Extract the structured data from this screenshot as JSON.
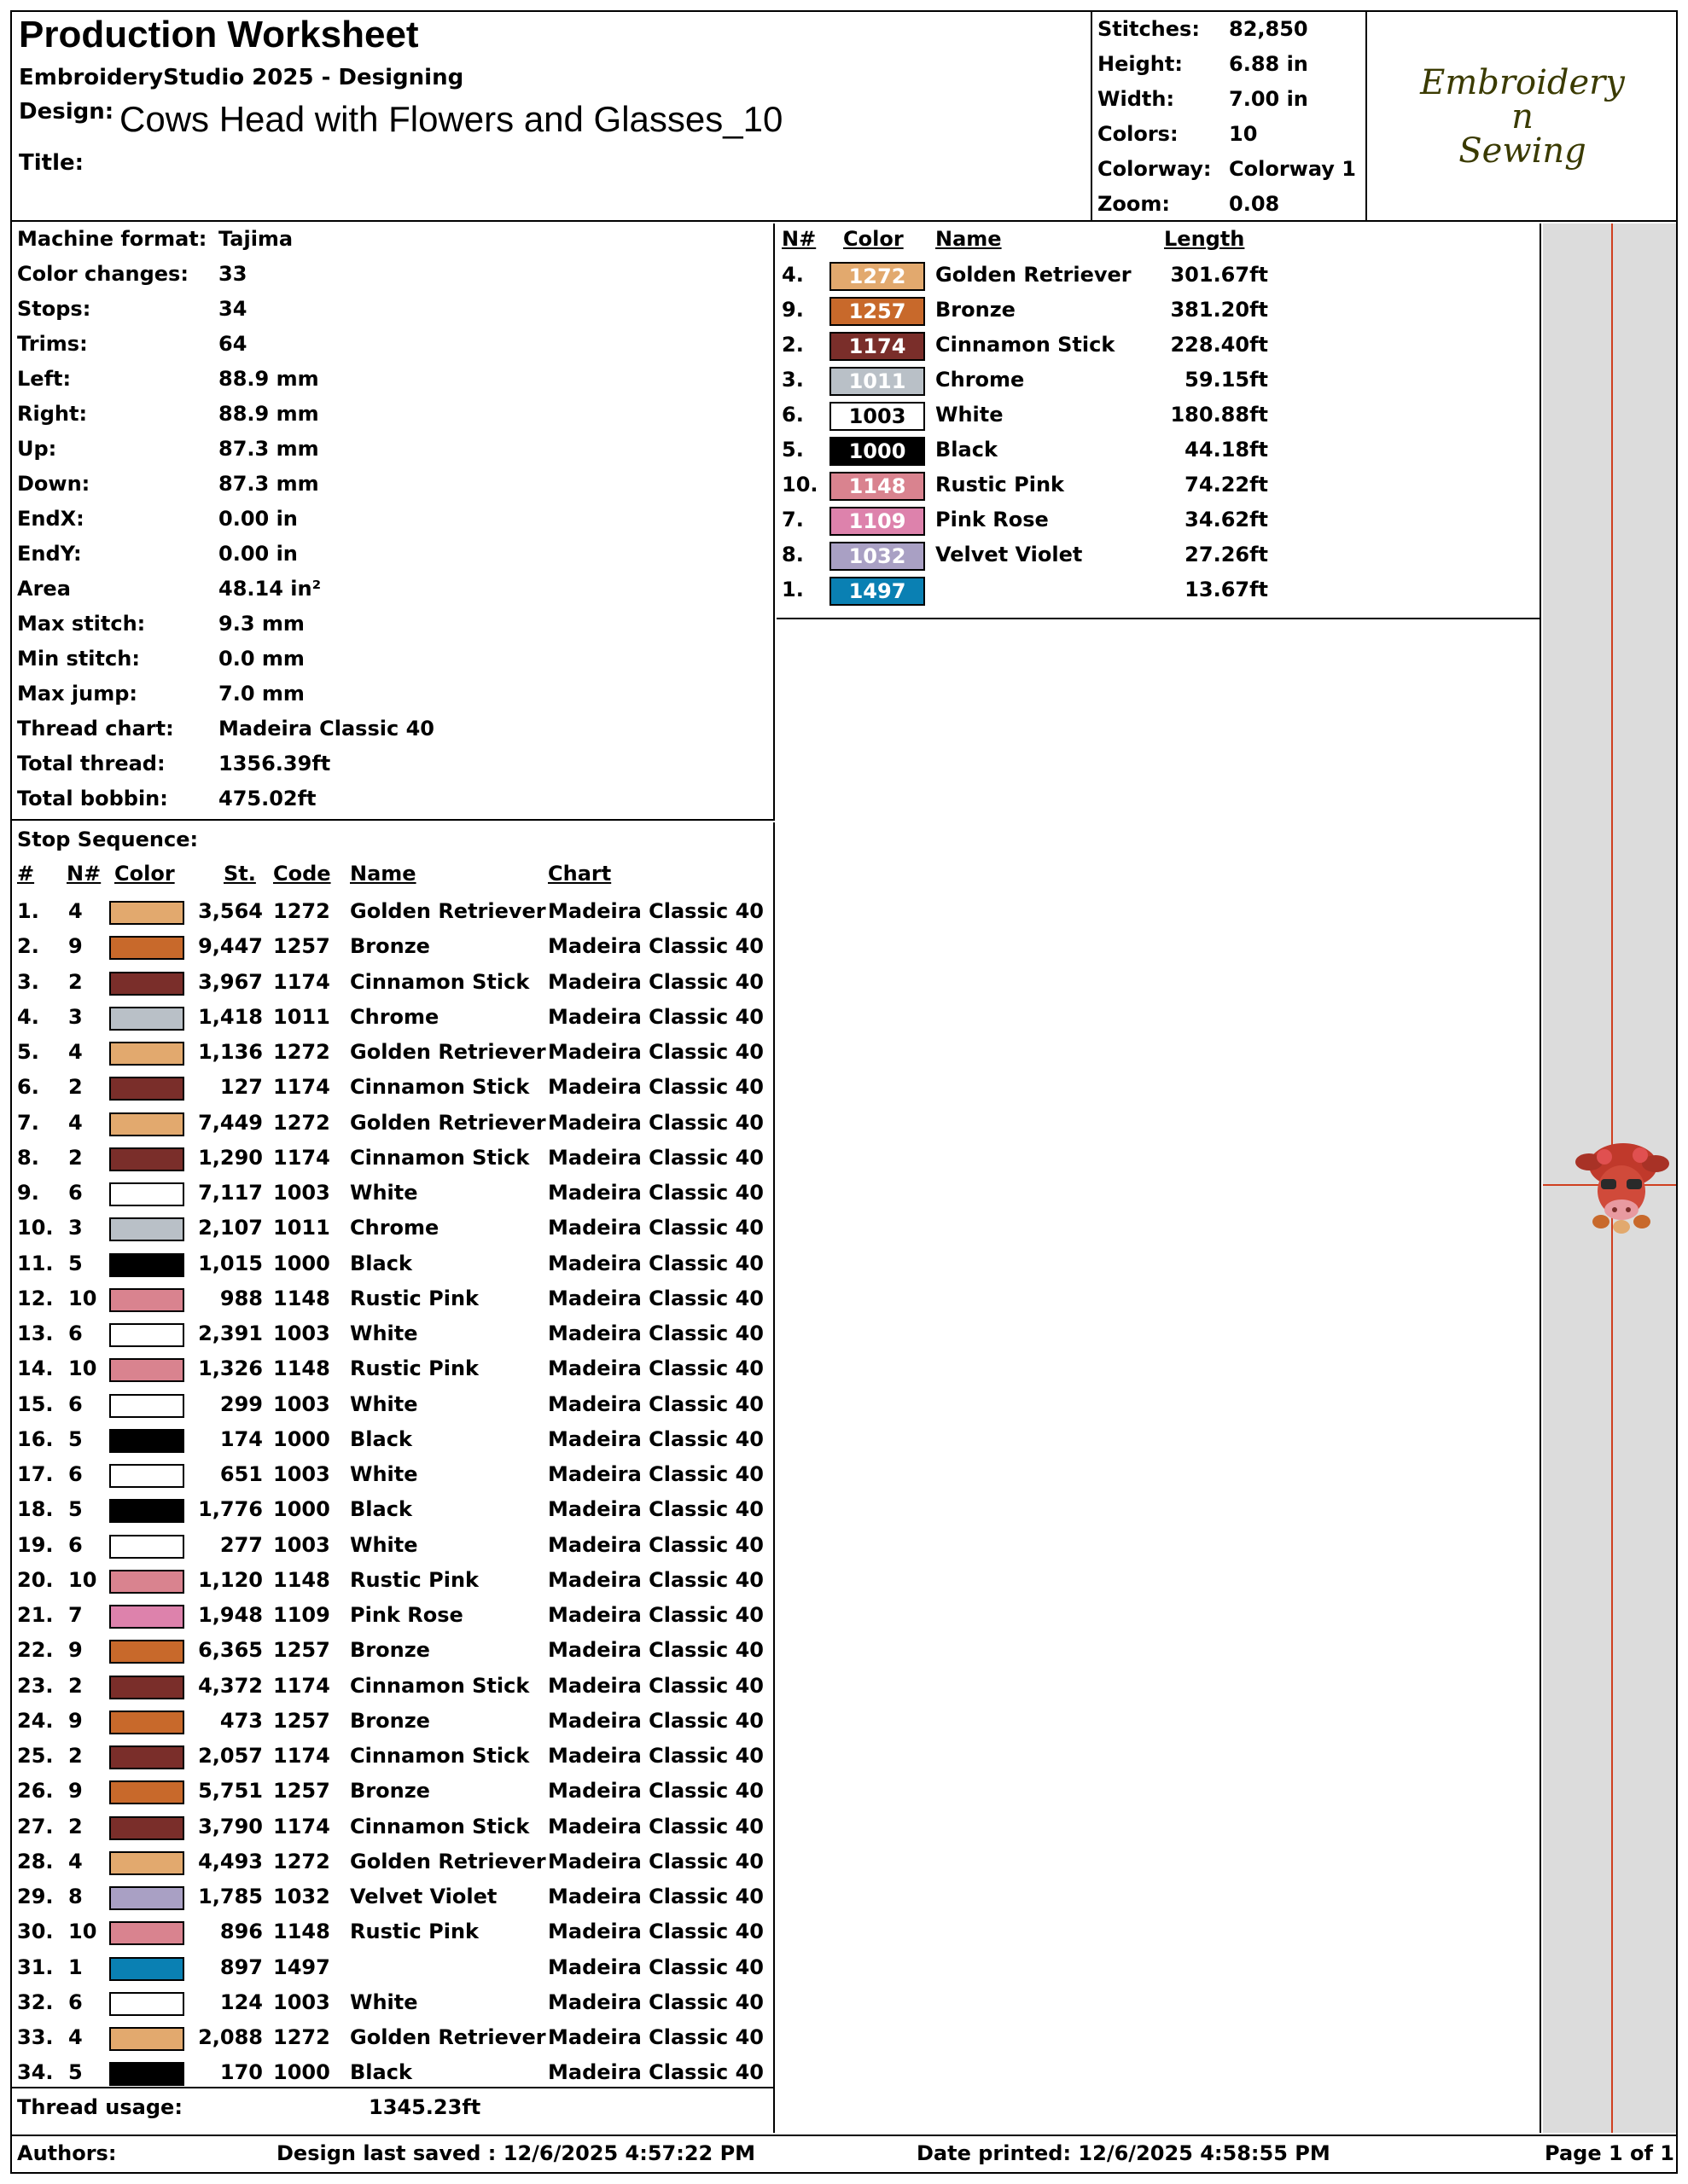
{
  "header": {
    "title": "Production Worksheet",
    "subtitle": "EmbroideryStudio 2025 - Designing",
    "design_label": "Design:",
    "design_name": "Cows Head with Flowers and Glasses_10",
    "title_label": "Title:",
    "title_value": ""
  },
  "stats": [
    {
      "label": "Stitches:",
      "value": "82,850"
    },
    {
      "label": "Height:",
      "value": "6.88 in"
    },
    {
      "label": "Width:",
      "value": "7.00 in"
    },
    {
      "label": "Colors:",
      "value": "10"
    },
    {
      "label": "Colorway:",
      "value": "Colorway 1"
    },
    {
      "label": "Zoom:",
      "value": "0.08"
    }
  ],
  "logo": {
    "line1": "Embroidery",
    "line2": "n",
    "line3": "Sewing",
    "color": "#3a3a00"
  },
  "machine_info": [
    {
      "label": "Machine format:",
      "value": "Tajima"
    },
    {
      "label": "Color changes:",
      "value": "33"
    },
    {
      "label": "Stops:",
      "value": "34"
    },
    {
      "label": "Trims:",
      "value": "64"
    },
    {
      "label": "Left:",
      "value": "88.9 mm"
    },
    {
      "label": "Right:",
      "value": "88.9 mm"
    },
    {
      "label": "Up:",
      "value": "87.3 mm"
    },
    {
      "label": "Down:",
      "value": "87.3 mm"
    },
    {
      "label": "EndX:",
      "value": "0.00 in"
    },
    {
      "label": "EndY:",
      "value": "0.00 in"
    },
    {
      "label": "Area",
      "value": " 48.14 in²"
    },
    {
      "label": "Max stitch:",
      "value": "9.3 mm"
    },
    {
      "label": "Min stitch:",
      "value": "0.0 mm"
    },
    {
      "label": "Max jump:",
      "value": "7.0 mm"
    },
    {
      "label": "Thread chart:",
      "value": "Madeira Classic 40"
    },
    {
      "label": "Total thread:",
      "value": "1356.39ft"
    },
    {
      "label": "Total bobbin:",
      "value": "475.02ft"
    }
  ],
  "color_table": {
    "headers": {
      "num": "N#",
      "color": "Color",
      "name": "Name",
      "length": "Length"
    },
    "rows": [
      {
        "num": "4.",
        "code": "1272",
        "hex": "#E2A96E",
        "text_color": "#ffffff",
        "name": "Golden Retriever",
        "length": "301.67ft"
      },
      {
        "num": "9.",
        "code": "1257",
        "hex": "#C8692B",
        "text_color": "#ffffff",
        "name": "Bronze",
        "length": "381.20ft"
      },
      {
        "num": "2.",
        "code": "1174",
        "hex": "#7A2E2A",
        "text_color": "#ffffff",
        "name": "Cinnamon Stick",
        "length": "228.40ft"
      },
      {
        "num": "3.",
        "code": "1011",
        "hex": "#B9C0C7",
        "text_color": "#ffffff",
        "name": "Chrome",
        "length": "59.15ft"
      },
      {
        "num": "6.",
        "code": "1003",
        "hex": "#FFFFFF",
        "text_color": "#000000",
        "name": "White",
        "length": "180.88ft"
      },
      {
        "num": "5.",
        "code": "1000",
        "hex": "#000000",
        "text_color": "#ffffff",
        "name": "Black",
        "length": "44.18ft"
      },
      {
        "num": "10.",
        "code": "1148",
        "hex": "#D9838F",
        "text_color": "#ffffff",
        "name": "Rustic Pink",
        "length": "74.22ft"
      },
      {
        "num": "7.",
        "code": "1109",
        "hex": "#DD82AC",
        "text_color": "#ffffff",
        "name": "Pink Rose",
        "length": "34.62ft"
      },
      {
        "num": "8.",
        "code": "1032",
        "hex": "#A9A0C4",
        "text_color": "#ffffff",
        "name": "Velvet Violet",
        "length": "27.26ft"
      },
      {
        "num": "1.",
        "code": "1497",
        "hex": "#0A80B3",
        "text_color": "#ffffff",
        "name": "",
        "length": "13.67ft"
      }
    ]
  },
  "stop_sequence": {
    "title": "Stop Sequence:",
    "headers": {
      "idx": "#",
      "num": "N#",
      "color": "Color",
      "st": "St.",
      "code": "Code",
      "name": "Name",
      "chart": "Chart"
    },
    "rows": [
      {
        "idx": "1.",
        "num": "4",
        "hex": "#E2A96E",
        "st": "3,564",
        "code": "1272",
        "name": "Golden Retriever",
        "chart": "Madeira Classic 40"
      },
      {
        "idx": "2.",
        "num": "9",
        "hex": "#C8692B",
        "st": "9,447",
        "code": "1257",
        "name": "Bronze",
        "chart": "Madeira Classic 40"
      },
      {
        "idx": "3.",
        "num": "2",
        "hex": "#7A2E2A",
        "st": "3,967",
        "code": "1174",
        "name": "Cinnamon Stick",
        "chart": "Madeira Classic 40"
      },
      {
        "idx": "4.",
        "num": "3",
        "hex": "#B9C0C7",
        "st": "1,418",
        "code": "1011",
        "name": "Chrome",
        "chart": "Madeira Classic 40"
      },
      {
        "idx": "5.",
        "num": "4",
        "hex": "#E2A96E",
        "st": "1,136",
        "code": "1272",
        "name": "Golden Retriever",
        "chart": "Madeira Classic 40"
      },
      {
        "idx": "6.",
        "num": "2",
        "hex": "#7A2E2A",
        "st": "127",
        "code": "1174",
        "name": "Cinnamon Stick",
        "chart": "Madeira Classic 40"
      },
      {
        "idx": "7.",
        "num": "4",
        "hex": "#E2A96E",
        "st": "7,449",
        "code": "1272",
        "name": "Golden Retriever",
        "chart": "Madeira Classic 40"
      },
      {
        "idx": "8.",
        "num": "2",
        "hex": "#7A2E2A",
        "st": "1,290",
        "code": "1174",
        "name": "Cinnamon Stick",
        "chart": "Madeira Classic 40"
      },
      {
        "idx": "9.",
        "num": "6",
        "hex": "#FFFFFF",
        "st": "7,117",
        "code": "1003",
        "name": "White",
        "chart": "Madeira Classic 40"
      },
      {
        "idx": "10.",
        "num": "3",
        "hex": "#B9C0C7",
        "st": "2,107",
        "code": "1011",
        "name": "Chrome",
        "chart": "Madeira Classic 40"
      },
      {
        "idx": "11.",
        "num": "5",
        "hex": "#000000",
        "st": "1,015",
        "code": "1000",
        "name": "Black",
        "chart": "Madeira Classic 40"
      },
      {
        "idx": "12.",
        "num": "10",
        "hex": "#D9838F",
        "st": "988",
        "code": "1148",
        "name": "Rustic Pink",
        "chart": "Madeira Classic 40"
      },
      {
        "idx": "13.",
        "num": "6",
        "hex": "#FFFFFF",
        "st": "2,391",
        "code": "1003",
        "name": "White",
        "chart": "Madeira Classic 40"
      },
      {
        "idx": "14.",
        "num": "10",
        "hex": "#D9838F",
        "st": "1,326",
        "code": "1148",
        "name": "Rustic Pink",
        "chart": "Madeira Classic 40"
      },
      {
        "idx": "15.",
        "num": "6",
        "hex": "#FFFFFF",
        "st": "299",
        "code": "1003",
        "name": "White",
        "chart": "Madeira Classic 40"
      },
      {
        "idx": "16.",
        "num": "5",
        "hex": "#000000",
        "st": "174",
        "code": "1000",
        "name": "Black",
        "chart": "Madeira Classic 40"
      },
      {
        "idx": "17.",
        "num": "6",
        "hex": "#FFFFFF",
        "st": "651",
        "code": "1003",
        "name": "White",
        "chart": "Madeira Classic 40"
      },
      {
        "idx": "18.",
        "num": "5",
        "hex": "#000000",
        "st": "1,776",
        "code": "1000",
        "name": "Black",
        "chart": "Madeira Classic 40"
      },
      {
        "idx": "19.",
        "num": "6",
        "hex": "#FFFFFF",
        "st": "277",
        "code": "1003",
        "name": "White",
        "chart": "Madeira Classic 40"
      },
      {
        "idx": "20.",
        "num": "10",
        "hex": "#D9838F",
        "st": "1,120",
        "code": "1148",
        "name": "Rustic Pink",
        "chart": "Madeira Classic 40"
      },
      {
        "idx": "21.",
        "num": "7",
        "hex": "#DD82AC",
        "st": "1,948",
        "code": "1109",
        "name": "Pink Rose",
        "chart": "Madeira Classic 40"
      },
      {
        "idx": "22.",
        "num": "9",
        "hex": "#C8692B",
        "st": "6,365",
        "code": "1257",
        "name": "Bronze",
        "chart": "Madeira Classic 40"
      },
      {
        "idx": "23.",
        "num": "2",
        "hex": "#7A2E2A",
        "st": "4,372",
        "code": "1174",
        "name": "Cinnamon Stick",
        "chart": "Madeira Classic 40"
      },
      {
        "idx": "24.",
        "num": "9",
        "hex": "#C8692B",
        "st": "473",
        "code": "1257",
        "name": "Bronze",
        "chart": "Madeira Classic 40"
      },
      {
        "idx": "25.",
        "num": "2",
        "hex": "#7A2E2A",
        "st": "2,057",
        "code": "1174",
        "name": "Cinnamon Stick",
        "chart": "Madeira Classic 40"
      },
      {
        "idx": "26.",
        "num": "9",
        "hex": "#C8692B",
        "st": "5,751",
        "code": "1257",
        "name": "Bronze",
        "chart": "Madeira Classic 40"
      },
      {
        "idx": "27.",
        "num": "2",
        "hex": "#7A2E2A",
        "st": "3,790",
        "code": "1174",
        "name": "Cinnamon Stick",
        "chart": "Madeira Classic 40"
      },
      {
        "idx": "28.",
        "num": "4",
        "hex": "#E2A96E",
        "st": "4,493",
        "code": "1272",
        "name": "Golden Retriever",
        "chart": "Madeira Classic 40"
      },
      {
        "idx": "29.",
        "num": "8",
        "hex": "#A9A0C4",
        "st": "1,785",
        "code": "1032",
        "name": "Velvet Violet",
        "chart": "Madeira Classic 40"
      },
      {
        "idx": "30.",
        "num": "10",
        "hex": "#D9838F",
        "st": "896",
        "code": "1148",
        "name": "Rustic Pink",
        "chart": "Madeira Classic 40"
      },
      {
        "idx": "31.",
        "num": "1",
        "hex": "#0A80B3",
        "st": "897",
        "code": "1497",
        "name": "",
        "chart": "Madeira Classic 40"
      },
      {
        "idx": "32.",
        "num": "6",
        "hex": "#FFFFFF",
        "st": "124",
        "code": "1003",
        "name": "White",
        "chart": "Madeira Classic 40"
      },
      {
        "idx": "33.",
        "num": "4",
        "hex": "#E2A96E",
        "st": "2,088",
        "code": "1272",
        "name": "Golden Retriever",
        "chart": "Madeira Classic 40"
      },
      {
        "idx": "34.",
        "num": "5",
        "hex": "#000000",
        "st": "170",
        "code": "1000",
        "name": "Black",
        "chart": "Madeira Classic 40"
      }
    ]
  },
  "thread_usage": {
    "label": "Thread usage:",
    "value": "1345.23ft"
  },
  "footer": {
    "authors": "Authors:",
    "last_saved": "Design last saved : 12/6/2025 4:57:22 PM",
    "printed": "Date printed: 12/6/2025 4:58:55 PM",
    "page": "Page 1 of 1"
  }
}
